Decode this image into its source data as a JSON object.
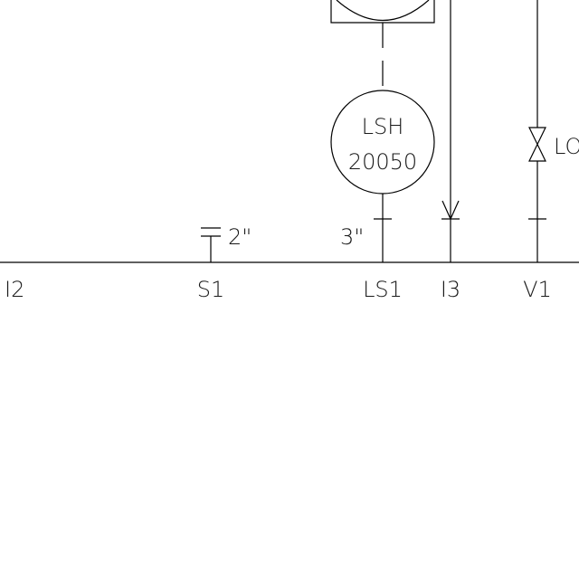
{
  "colors": {
    "background": "#ffffff",
    "line": "#000000",
    "text": "#1a1a1a"
  },
  "points": [
    {
      "id": "p-i2",
      "label": "I2"
    },
    {
      "id": "p-s1",
      "label": "S1"
    },
    {
      "id": "p-ls1",
      "label": "LS1"
    },
    {
      "id": "p-i3",
      "label": "I3"
    },
    {
      "id": "p-v1",
      "label": "V1"
    }
  ],
  "pipe_sizes": [
    {
      "id": "size-s1",
      "label": "2\""
    },
    {
      "id": "size-ls1",
      "label": "3\""
    }
  ],
  "instrument": {
    "type": "LSH",
    "number": "20050"
  },
  "valve_label": "LO"
}
